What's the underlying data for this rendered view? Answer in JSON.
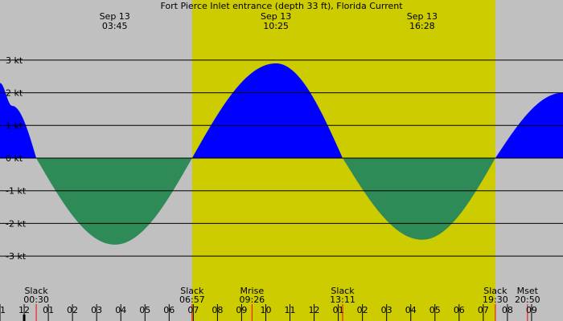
{
  "chart_data": {
    "type": "area",
    "title": "Fort Pierce Inlet entrance (depth 33 ft), Florida Current",
    "unit": "kt",
    "ylim": [
      -3.8,
      3.8
    ],
    "xlim_hours": [
      -1,
      22.3
    ],
    "y_ticks": [
      {
        "value": 3,
        "label": "3 kt"
      },
      {
        "value": 2,
        "label": "2 kt"
      },
      {
        "value": 1,
        "label": "1 kt"
      },
      {
        "value": 0,
        "label": "0 kt"
      },
      {
        "value": -1,
        "label": "-1 kt"
      },
      {
        "value": -2,
        "label": "-2 kt"
      },
      {
        "value": -3,
        "label": "-3 kt"
      }
    ],
    "x_ticks": [
      "11",
      "12",
      "01",
      "02",
      "03",
      "04",
      "05",
      "06",
      "07",
      "08",
      "09",
      "10",
      "11",
      "12",
      "01",
      "02",
      "03",
      "04",
      "05",
      "06",
      "07",
      "08",
      "09"
    ],
    "current_curve": {
      "time_hours": [
        -1.0,
        -0.5,
        0.5,
        3.75,
        6.95,
        10.42,
        13.18,
        16.47,
        19.5,
        22.3
      ],
      "speed_kt": [
        2.3,
        1.6,
        0.0,
        -2.65,
        0.0,
        2.9,
        0.0,
        -2.5,
        0.0,
        2.0
      ],
      "flood_color": "#0000ff",
      "ebb_color": "#2e8b57"
    },
    "daylight": {
      "start_hours": 6.95,
      "end_hours": 19.5,
      "color": "#cccc00"
    },
    "night_color": "#c0c0c0",
    "top_annotations": [
      {
        "time_hours": 3.75,
        "date": "Sep 13",
        "time": "03:45"
      },
      {
        "time_hours": 10.42,
        "date": "Sep 13",
        "time": "10:25"
      },
      {
        "time_hours": 16.47,
        "date": "Sep 13",
        "time": "16:28"
      }
    ],
    "bottom_events": [
      {
        "time_hours": 0.5,
        "name": "Slack",
        "time": "00:30"
      },
      {
        "time_hours": 6.95,
        "name": "Slack",
        "time": "06:57"
      },
      {
        "time_hours": 9.43,
        "name": "Mrise",
        "time": "09:26"
      },
      {
        "time_hours": 13.18,
        "name": "Slack",
        "time": "13:11"
      },
      {
        "time_hours": 19.5,
        "name": "Slack",
        "time": "19:30"
      },
      {
        "time_hours": 20.83,
        "name": "Mset",
        "time": "20:50"
      }
    ]
  }
}
